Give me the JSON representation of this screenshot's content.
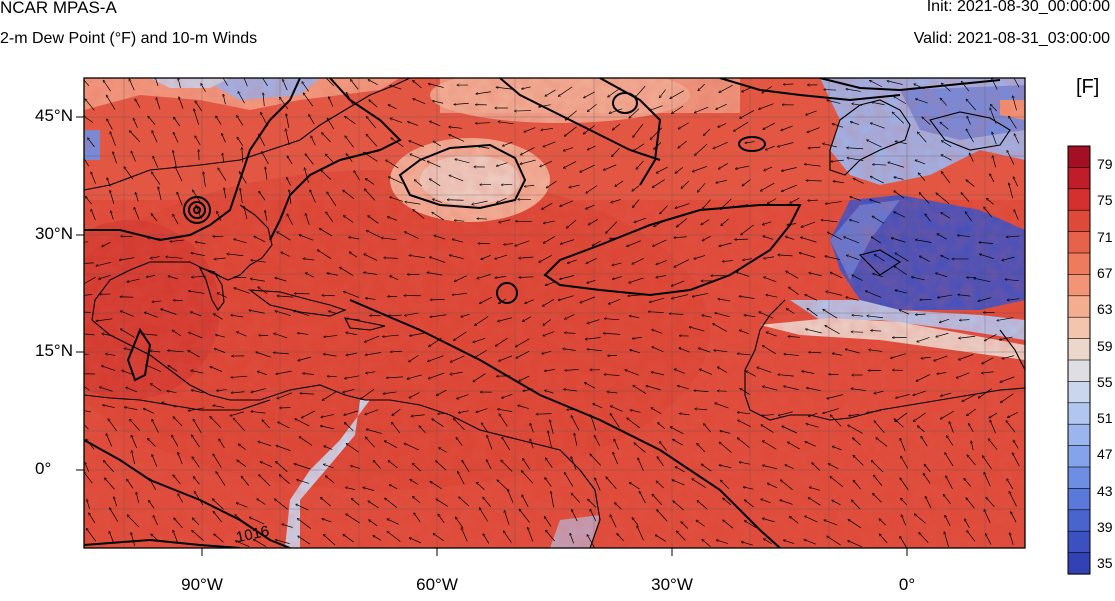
{
  "header": {
    "title": "NCAR MPAS-A",
    "subtitle": "2-m Dew Point (°F) and 10-m Winds",
    "init": "Init: 2021-08-30_00:00:00",
    "valid": "Valid: 2021-08-31_03:00:00"
  },
  "map": {
    "lat_ticks": [
      "45°N",
      "30°N",
      "15°N",
      "0°"
    ],
    "lon_ticks": [
      "90°W",
      "60°W",
      "30°W",
      "0°"
    ],
    "contour_label": "1016"
  },
  "colorbar": {
    "units": "[F]",
    "labels": [
      "79",
      "75",
      "71",
      "67",
      "63",
      "59",
      "55",
      "51",
      "47",
      "43",
      "39",
      "35"
    ],
    "colors": [
      "#a50f26",
      "#c01d2b",
      "#d52f2f",
      "#de4a3a",
      "#e6624a",
      "#ee7b5e",
      "#f29475",
      "#f5ad90",
      "#f4c5ae",
      "#ecd7cd",
      "#dfdfe3",
      "#c9d6ee",
      "#b2c7f0",
      "#9bb6ee",
      "#84a3ea",
      "#6e8ee3",
      "#5b79da",
      "#4a64cf",
      "#3c50c2",
      "#3241b4"
    ]
  }
}
